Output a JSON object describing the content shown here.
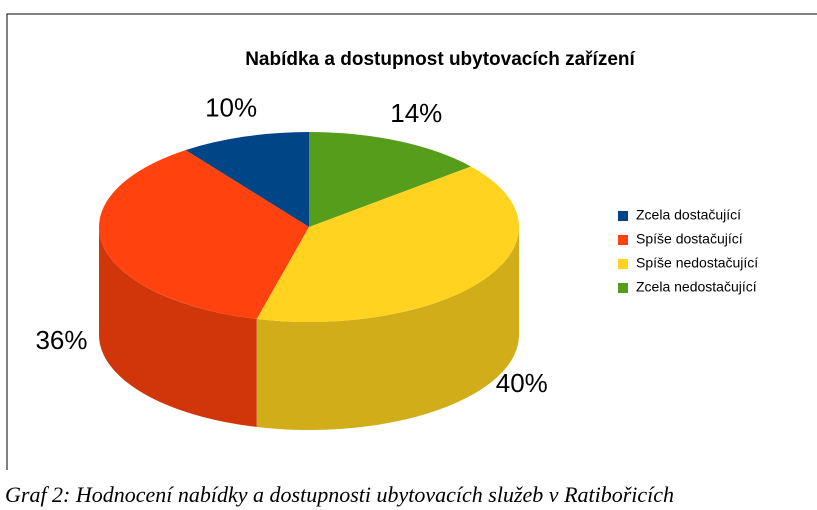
{
  "chart_data": {
    "type": "pie",
    "title": "Nabídka a dostupnost ubytovacích zařízení",
    "categories": [
      "Zcela dostačující",
      "Spíše dostačující",
      "Spíše nedostačující",
      "Zcela nedostačující"
    ],
    "values": [
      10,
      36,
      40,
      14
    ],
    "value_labels": [
      "10%",
      "36%",
      "40%",
      "14%"
    ],
    "colors": [
      "#004586",
      "#ff420e",
      "#ffd320",
      "#579d1c"
    ],
    "legend": "right",
    "caption": "Graf 2: Hodnocení nabídky a dostupnosti ubytovacích služeb v Ratibořicích"
  }
}
